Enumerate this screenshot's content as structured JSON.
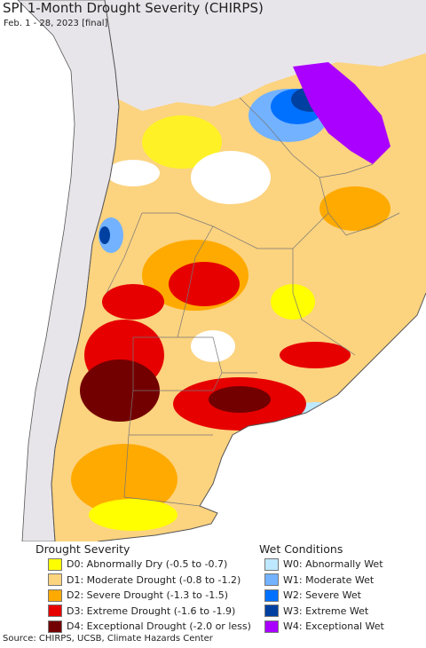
{
  "title": "SPI 1-Month Drought Severity (CHIRPS)",
  "subtitle": "Feb. 1 - 28, 2023 [final]",
  "legend_drought": {
    "header": "Drought Severity",
    "items": [
      {
        "label": "D0: Abnormally Dry (-0.5 to -0.7)",
        "color": "#ffff00"
      },
      {
        "label": "D1: Moderate Drought (-0.8 to -1.2)",
        "color": "#fcd37f"
      },
      {
        "label": "D2: Severe Drought (-1.3 to -1.5)",
        "color": "#ffaa00"
      },
      {
        "label": "D3: Extreme Drought (-1.6 to -1.9)",
        "color": "#e60000"
      },
      {
        "label": "D4: Exceptional Drought (-2.0 or less)",
        "color": "#730000"
      }
    ]
  },
  "legend_wet": {
    "header": "Wet Conditions",
    "items": [
      {
        "label": "W0: Abnormally Wet",
        "color": "#bee8ff"
      },
      {
        "label": "W1: Moderate Wet",
        "color": "#73b2ff"
      },
      {
        "label": "W2: Severe Wet",
        "color": "#0070ff"
      },
      {
        "label": "W3: Extreme Wet",
        "color": "#0040a0"
      },
      {
        "label": "W4: Exceptional Wet",
        "color": "#aa00ff"
      }
    ]
  },
  "source": "Source: CHIRPS, UCSB, Climate Hazards Center",
  "colors": {
    "background": "#e8e5ea",
    "ocean": "#ffffff",
    "border": "#555555"
  }
}
